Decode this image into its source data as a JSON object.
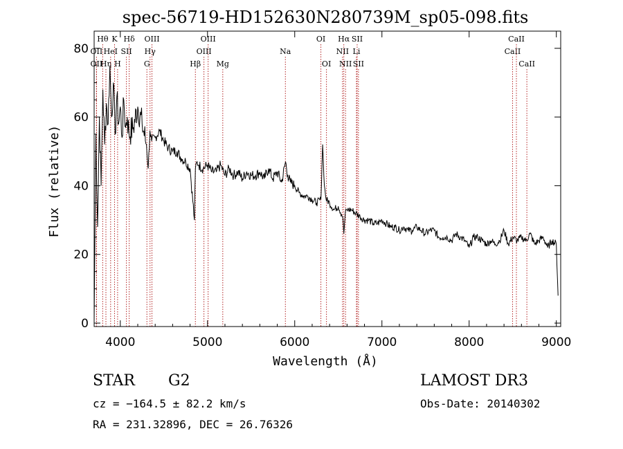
{
  "chart_data": {
    "type": "line",
    "title": "spec-56719-HD152630N280739M_sp05-098.fits",
    "xlabel": "Wavelength (Å)",
    "ylabel": "Flux (relative)",
    "xlim": [
      3700,
      9050
    ],
    "ylim": [
      -1,
      85
    ],
    "xticks": [
      4000,
      5000,
      6000,
      7000,
      8000,
      9000
    ],
    "yticks": [
      0,
      20,
      40,
      60,
      80
    ],
    "series": [
      {
        "name": "spectrum",
        "x": [
          3700,
          3720,
          3740,
          3760,
          3780,
          3800,
          3820,
          3840,
          3860,
          3880,
          3900,
          3920,
          3940,
          3960,
          3980,
          4000,
          4020,
          4040,
          4060,
          4080,
          4100,
          4150,
          4200,
          4250,
          4300,
          4320,
          4340,
          4360,
          4400,
          4450,
          4500,
          4550,
          4600,
          4650,
          4700,
          4750,
          4800,
          4850,
          4861,
          4880,
          4900,
          4950,
          5000,
          5050,
          5100,
          5150,
          5200,
          5250,
          5300,
          5350,
          5400,
          5450,
          5500,
          5550,
          5600,
          5650,
          5700,
          5750,
          5800,
          5850,
          5895,
          5920,
          5950,
          6000,
          6050,
          6100,
          6150,
          6200,
          6250,
          6300,
          6320,
          6340,
          6360,
          6400,
          6450,
          6500,
          6550,
          6563,
          6580,
          6600,
          6650,
          6700,
          6750,
          6800,
          6850,
          6900,
          6950,
          7000,
          7050,
          7100,
          7150,
          7200,
          7250,
          7300,
          7350,
          7400,
          7450,
          7500,
          7550,
          7600,
          7650,
          7700,
          7750,
          7800,
          7850,
          7900,
          7950,
          8000,
          8050,
          8100,
          8150,
          8200,
          8250,
          8300,
          8350,
          8400,
          8450,
          8500,
          8550,
          8600,
          8650,
          8700,
          8750,
          8800,
          8850,
          8900,
          8950,
          9000,
          9020
        ],
        "y": [
          0,
          55,
          28,
          60,
          40,
          68,
          52,
          64,
          58,
          75,
          60,
          70,
          55,
          66,
          58,
          63,
          54,
          65,
          57,
          60,
          55,
          57,
          63,
          58,
          52,
          45,
          56,
          53,
          54,
          56,
          53,
          51,
          50,
          50,
          48,
          47,
          45,
          30,
          45,
          47,
          46,
          45,
          46,
          44,
          44,
          46,
          43,
          45,
          43,
          44,
          42,
          44,
          43,
          43,
          44,
          42,
          45,
          42,
          44,
          41,
          47,
          43,
          41,
          40,
          38,
          37,
          37,
          36,
          35,
          36,
          52,
          40,
          36,
          35,
          33,
          34,
          31,
          26,
          32,
          33,
          33,
          32,
          31,
          30,
          30,
          29,
          29,
          30,
          29,
          28,
          28,
          27,
          28,
          27,
          27,
          28,
          27,
          26,
          27,
          27,
          25,
          25,
          25,
          24,
          26,
          25,
          24,
          22,
          25,
          25,
          24,
          23,
          24,
          23,
          24,
          27,
          23,
          25,
          24,
          25,
          24,
          26,
          23,
          24,
          25,
          22,
          24,
          23,
          8
        ]
      }
    ],
    "lines": [
      {
        "label": "OII",
        "wl": 3727,
        "row": 3
      },
      {
        "label": "OII",
        "wl": 3727,
        "row": 2
      },
      {
        "label": "Hθ",
        "wl": 3798,
        "row": 1
      },
      {
        "label": "Hη",
        "wl": 3835,
        "row": 3
      },
      {
        "label": "HeI",
        "wl": 3889,
        "row": 2
      },
      {
        "label": "K",
        "wl": 3934,
        "row": 1
      },
      {
        "label": "H",
        "wl": 3969,
        "row": 3
      },
      {
        "label": "SII",
        "wl": 4070,
        "row": 2
      },
      {
        "label": "Hδ",
        "wl": 4102,
        "row": 1
      },
      {
        "label": "G",
        "wl": 4305,
        "row": 3
      },
      {
        "label": "Hγ",
        "wl": 4341,
        "row": 2
      },
      {
        "label": "OIII",
        "wl": 4363,
        "row": 1
      },
      {
        "label": "Hβ",
        "wl": 4861,
        "row": 3
      },
      {
        "label": "OIII",
        "wl": 4959,
        "row": 2
      },
      {
        "label": "OIII",
        "wl": 5007,
        "row": 1
      },
      {
        "label": "Mg",
        "wl": 5175,
        "row": 3
      },
      {
        "label": "Na",
        "wl": 5893,
        "row": 2
      },
      {
        "label": "OI",
        "wl": 6300,
        "row": 1
      },
      {
        "label": "OI",
        "wl": 6364,
        "row": 3
      },
      {
        "label": "NII",
        "wl": 6548,
        "row": 2
      },
      {
        "label": "Hα",
        "wl": 6563,
        "row": 1
      },
      {
        "label": "NII",
        "wl": 6583,
        "row": 3
      },
      {
        "label": "SII",
        "wl": 6716,
        "row": 1
      },
      {
        "label": "Li",
        "wl": 6708,
        "row": 2
      },
      {
        "label": "SII",
        "wl": 6731,
        "row": 3
      },
      {
        "label": "CaII",
        "wl": 8498,
        "row": 2
      },
      {
        "label": "CaII",
        "wl": 8542,
        "row": 1
      },
      {
        "label": "CaII",
        "wl": 8662,
        "row": 3
      }
    ]
  },
  "info": {
    "object_class": "STAR",
    "subclass": "G2",
    "survey": "LAMOST DR3",
    "redshift": "cz = −164.5 ± 82.2 km/s",
    "obs_date": "Obs-Date: 20140302",
    "coords": "RA = 231.32896, DEC =  26.76326"
  },
  "colors": {
    "spectrum": "#000000",
    "line_markers": "#b22222"
  }
}
